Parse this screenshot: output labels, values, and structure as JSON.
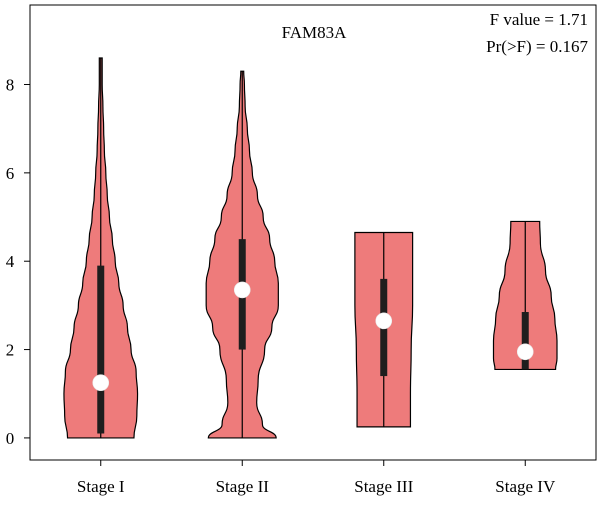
{
  "chart_data": {
    "type": "violin",
    "title": "FAM83A",
    "annotation": {
      "f_line": "F value = 1.71",
      "p_line": "Pr(>F) = 0.167"
    },
    "categories": [
      "Stage I",
      "Stage II",
      "Stage III",
      "Stage IV"
    ],
    "ylim": [
      -0.5,
      9.8
    ],
    "yticks": [
      0,
      2,
      4,
      6,
      8
    ],
    "grid": false,
    "legend": "none",
    "violin_color": "#EE7B7B",
    "box_color": "#1E1E1E",
    "median_color": "#FFFFFF",
    "series": [
      {
        "category": "Stage I",
        "min": 0.0,
        "q1": 0.1,
        "median": 1.25,
        "q3": 3.9,
        "max": 8.6,
        "density": [
          [
            0.0,
            0.46
          ],
          [
            0.5,
            0.5
          ],
          [
            1.0,
            0.51
          ],
          [
            1.5,
            0.49
          ],
          [
            2.0,
            0.42
          ],
          [
            2.5,
            0.37
          ],
          [
            3.0,
            0.31
          ],
          [
            3.5,
            0.25
          ],
          [
            4.0,
            0.2
          ],
          [
            4.5,
            0.16
          ],
          [
            5.0,
            0.12
          ],
          [
            5.5,
            0.09
          ],
          [
            6.0,
            0.07
          ],
          [
            6.5,
            0.05
          ],
          [
            7.0,
            0.04
          ],
          [
            7.5,
            0.03
          ],
          [
            8.0,
            0.02
          ],
          [
            8.6,
            0.02
          ]
        ]
      },
      {
        "category": "Stage II",
        "min": 0.0,
        "q1": 2.0,
        "median": 3.35,
        "q3": 4.5,
        "max": 8.3,
        "density": [
          [
            0.0,
            0.47
          ],
          [
            0.3,
            0.28
          ],
          [
            0.8,
            0.2
          ],
          [
            1.3,
            0.22
          ],
          [
            2.0,
            0.31
          ],
          [
            2.5,
            0.41
          ],
          [
            3.0,
            0.5
          ],
          [
            3.5,
            0.5
          ],
          [
            4.0,
            0.45
          ],
          [
            4.5,
            0.38
          ],
          [
            5.0,
            0.29
          ],
          [
            5.5,
            0.21
          ],
          [
            6.0,
            0.14
          ],
          [
            6.5,
            0.1
          ],
          [
            7.0,
            0.07
          ],
          [
            7.5,
            0.04
          ],
          [
            8.0,
            0.03
          ],
          [
            8.3,
            0.02
          ]
        ]
      },
      {
        "category": "Stage III",
        "min": 0.25,
        "q1": 1.4,
        "median": 2.65,
        "q3": 3.6,
        "max": 4.65,
        "density": [
          [
            0.25,
            0.37
          ],
          [
            1.0,
            0.37
          ],
          [
            2.0,
            0.38
          ],
          [
            3.0,
            0.4
          ],
          [
            4.0,
            0.4
          ],
          [
            4.65,
            0.4
          ]
        ]
      },
      {
        "category": "Stage IV",
        "min": 1.55,
        "q1": 1.55,
        "median": 1.95,
        "q3": 2.85,
        "max": 4.9,
        "density": [
          [
            1.55,
            0.42
          ],
          [
            1.8,
            0.44
          ],
          [
            2.2,
            0.44
          ],
          [
            2.7,
            0.41
          ],
          [
            3.2,
            0.36
          ],
          [
            3.8,
            0.28
          ],
          [
            4.4,
            0.21
          ],
          [
            4.9,
            0.2
          ]
        ]
      }
    ]
  }
}
